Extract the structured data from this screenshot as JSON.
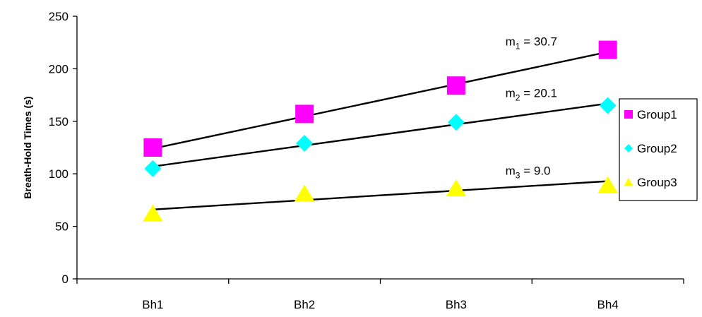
{
  "chart_data": {
    "type": "scatter",
    "categories": [
      "Bh1",
      "Bh2",
      "Bh3",
      "Bh4"
    ],
    "ylabel": "Breath-Hold Times (s)",
    "ylim": [
      0,
      250
    ],
    "yticks": [
      0,
      50,
      100,
      150,
      200,
      250
    ],
    "grid": false,
    "legend_position": "right",
    "series": [
      {
        "name": "Group1",
        "marker": "square",
        "color": "#ff00ff",
        "values": [
          125,
          157,
          184,
          218
        ],
        "trend": {
          "start": 124,
          "end": 216
        },
        "annotation": {
          "base": "m",
          "sub": "1",
          "text": " = 30.7"
        }
      },
      {
        "name": "Group2",
        "marker": "diamond",
        "color": "#00ffff",
        "values": [
          105,
          129,
          149,
          165
        ],
        "trend": {
          "start": 107,
          "end": 167
        },
        "annotation": {
          "base": "m",
          "sub": "2",
          "text": " = 20.1"
        }
      },
      {
        "name": "Group3",
        "marker": "triangle",
        "color": "#ffff00",
        "values": [
          62,
          81,
          86,
          89
        ],
        "trend": {
          "start": 66,
          "end": 93
        },
        "annotation": {
          "base": "m",
          "sub": "3",
          "text": " = 9.0"
        }
      }
    ]
  }
}
